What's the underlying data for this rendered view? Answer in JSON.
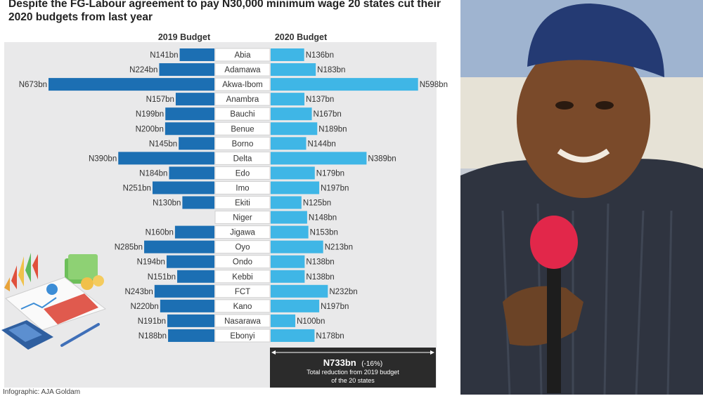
{
  "title": "Despite the FG-Labour agreement to pay N30,000 minimum wage 20 states cut their 2020 budgets from last year",
  "colors": {
    "budget_2019": "#1c6fb3",
    "budget_2020": "#3fb6e6",
    "panel": "#e9e9ea",
    "summary_box": "#2b2b2b"
  },
  "summary": {
    "amount": "N733bn",
    "change": "(-16%)",
    "line1": "Total reduction from 2019 budget",
    "line2": "of the 20 states"
  },
  "credit": "Infographic: AJA Goldam",
  "chart_data": {
    "type": "bar",
    "orientation": "horizontal-butterfly",
    "unit_prefix": "N",
    "unit_suffix": "bn",
    "categories": [
      "Abia",
      "Adamawa",
      "Akwa-Ibom",
      "Anambra",
      "Bauchi",
      "Benue",
      "Borno",
      "Delta",
      "Edo",
      "Imo",
      "Ekiti",
      "Niger",
      "Jigawa",
      "Oyo",
      "Ondo",
      "Kebbi",
      "FCT",
      "Kano",
      "Nasarawa",
      "Ebonyi"
    ],
    "series": [
      {
        "name": "2019 Budget",
        "side": "left",
        "values": [
          141,
          224,
          673,
          157,
          199,
          200,
          145,
          390,
          184,
          251,
          130,
          null,
          160,
          285,
          194,
          151,
          243,
          220,
          191,
          188
        ]
      },
      {
        "name": "2020 Budget",
        "side": "right",
        "values": [
          136,
          183,
          598,
          137,
          167,
          189,
          144,
          389,
          179,
          197,
          125,
          148,
          153,
          213,
          138,
          138,
          232,
          197,
          100,
          178
        ]
      }
    ]
  }
}
